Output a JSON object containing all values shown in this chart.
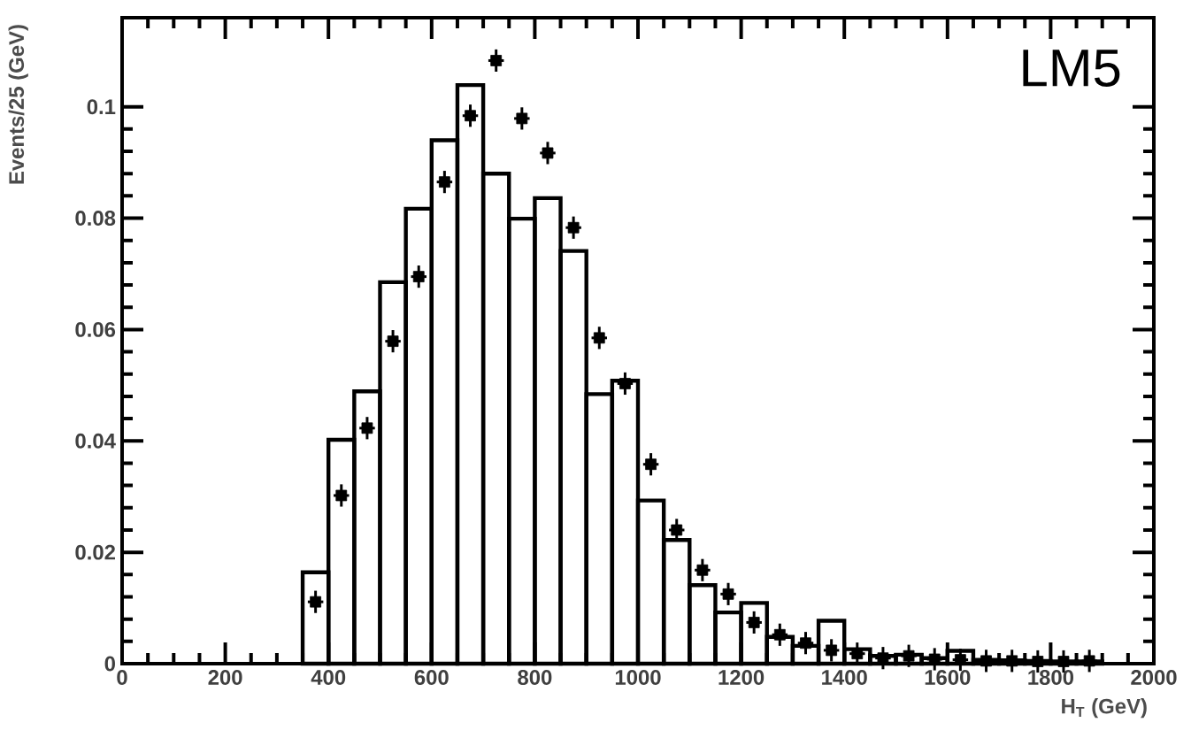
{
  "chart_data": {
    "type": "histogram",
    "xlabel": "H$_{T}$ (GeV)",
    "ylabel": "Events/25 (GeV)",
    "annotations": [
      "LM5"
    ],
    "xlim": [
      0,
      2000
    ],
    "ylim": [
      0,
      0.116
    ],
    "xticks": [
      0,
      200,
      400,
      600,
      800,
      1000,
      1200,
      1400,
      1600,
      1800,
      2000
    ],
    "yticks": [
      0,
      0.02,
      0.04,
      0.06,
      0.08,
      0.1
    ],
    "series": [
      {
        "color": "#000000",
        "bins": [
          350,
          400,
          450,
          500,
          550,
          600,
          650,
          700,
          750,
          800,
          850,
          900,
          950,
          1000,
          1050,
          1100,
          1150,
          1200,
          1250,
          1300,
          1350,
          1400,
          1450,
          1500,
          1550,
          1600,
          1650,
          1700,
          1750,
          1800,
          1850,
          1900
        ],
        "values": [
          0.0164,
          0.0402,
          0.0489,
          0.0685,
          0.0817,
          0.094,
          0.1039,
          0.088,
          0.0799,
          0.0836,
          0.0741,
          0.0484,
          0.0508,
          0.0293,
          0.0222,
          0.0141,
          0.0092,
          0.0109,
          0.0048,
          0.0032,
          0.0077,
          0.0026,
          0.0014,
          0.0016,
          0.001,
          0.0023,
          0.0007,
          0.0006,
          0.0005,
          0.0004,
          0.0004
        ]
      },
      {
        "type": "scatter",
        "color": "#000000",
        "marker": "square",
        "x": [
          375,
          425,
          475,
          525,
          575,
          625,
          675,
          725,
          775,
          825,
          875,
          925,
          975,
          1025,
          1075,
          1125,
          1175,
          1225,
          1275,
          1325,
          1375,
          1425,
          1475,
          1525,
          1575,
          1625,
          1675,
          1725,
          1775,
          1825,
          1875
        ],
        "values": [
          0.0111,
          0.0302,
          0.0423,
          0.0579,
          0.0695,
          0.0865,
          0.0984,
          0.1083,
          0.0979,
          0.0917,
          0.0783,
          0.0585,
          0.0503,
          0.0358,
          0.024,
          0.0168,
          0.0125,
          0.0074,
          0.0052,
          0.0037,
          0.0024,
          0.0018,
          0.001,
          0.0014,
          0.0008,
          0.0007,
          0.0005,
          0.0005,
          0.0004,
          0.0004,
          0.0005
        ],
        "xerrors": [
          15,
          15,
          15,
          15,
          15,
          15,
          15,
          15,
          15,
          15,
          15,
          15,
          15,
          15,
          15,
          15,
          15,
          15,
          15,
          15,
          15,
          15,
          15,
          15,
          15,
          15,
          15,
          15,
          15,
          15,
          15
        ],
        "errors": [
          0.002,
          0.002,
          0.002,
          0.002,
          0.002,
          0.002,
          0.002,
          0.002,
          0.002,
          0.002,
          0.002,
          0.002,
          0.002,
          0.002,
          0.002,
          0.002,
          0.002,
          0.002,
          0.002,
          0.002,
          0.002,
          0.002,
          0.002,
          0.002,
          0.002,
          0.002,
          0.002,
          0.002,
          0.002,
          0.002,
          0.002
        ]
      }
    ]
  }
}
